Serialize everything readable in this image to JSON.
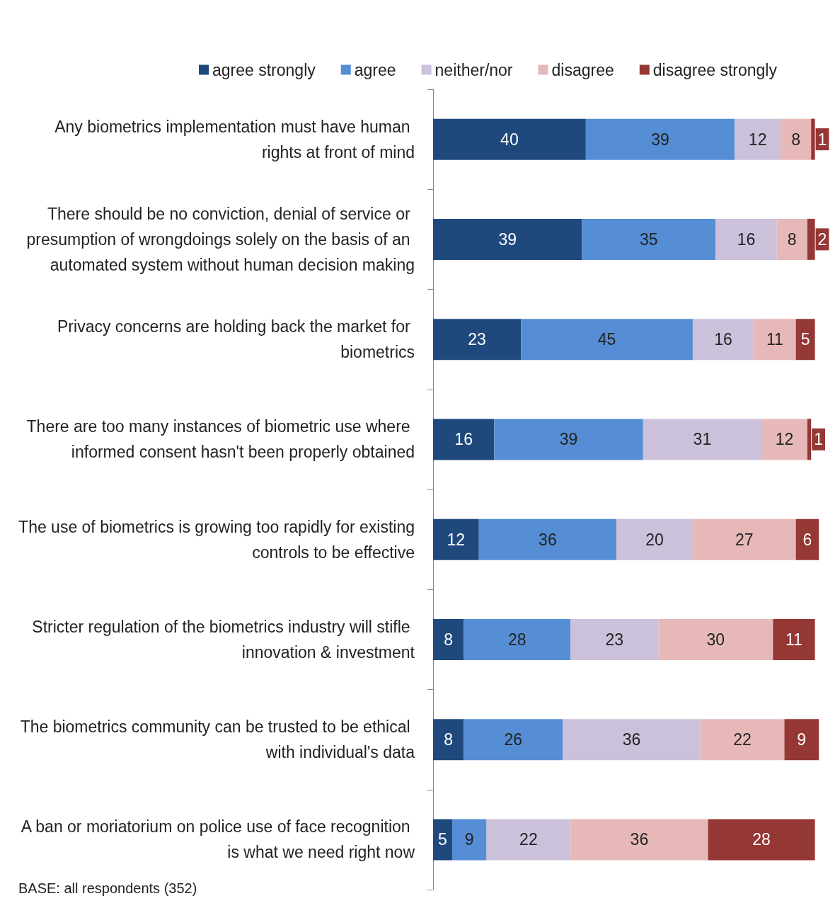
{
  "chart_data": {
    "type": "bar",
    "orientation": "horizontal",
    "stacked": true,
    "data_labels": true,
    "legend": "top",
    "categories": [
      "Any biometrics implementation must have human rights at front of mind",
      "There should be no conviction, denial of service or presumption of wrongdoings solely on the basis of an automated system without human decision making",
      "Privacy concerns are holding back the market for biometrics",
      "There are too many instances of biometric use where informed consent hasn't been properly obtained",
      "The use of biometrics is growing too rapidly for existing controls to be effective",
      "Stricter regulation of the biometrics industry will stifle innovation & investment",
      "The biometrics community can be trusted to be ethical with individual's data",
      "A ban or moriatorium on police use of face recognition is what we need right now"
    ],
    "series": [
      {
        "name": "agree strongly",
        "color": "#1f497d",
        "values": [
          40,
          39,
          23,
          16,
          12,
          8,
          8,
          5
        ]
      },
      {
        "name": "agree",
        "color": "#558ed5",
        "values": [
          39,
          35,
          45,
          39,
          36,
          28,
          26,
          9
        ]
      },
      {
        "name": "neither/nor",
        "color": "#ccc1da",
        "values": [
          12,
          16,
          16,
          31,
          20,
          23,
          36,
          22
        ]
      },
      {
        "name": "disagree",
        "color": "#e6b9b8",
        "values": [
          8,
          8,
          11,
          12,
          27,
          30,
          22,
          36
        ]
      },
      {
        "name": "disagree strongly",
        "color": "#953735",
        "values": [
          1,
          2,
          5,
          1,
          6,
          11,
          9,
          28
        ]
      }
    ],
    "annotations": [
      "BASE: all respondents (352)"
    ]
  }
}
